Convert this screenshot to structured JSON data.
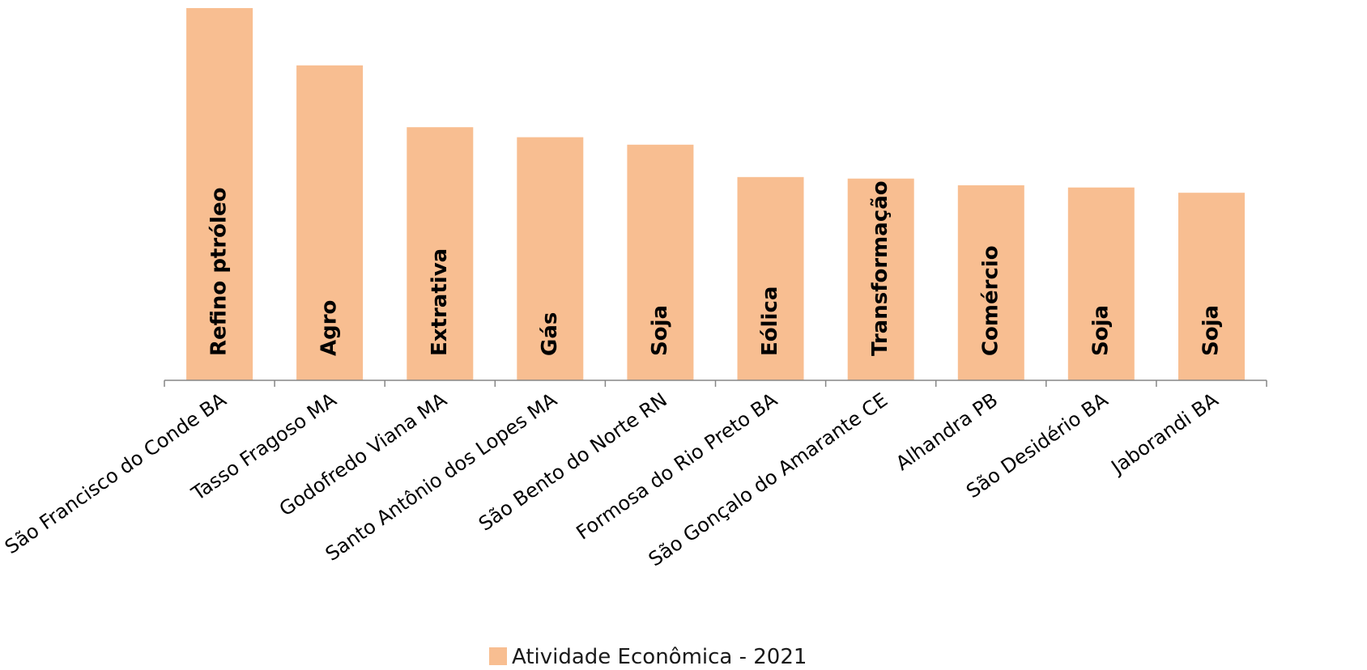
{
  "chart_data": {
    "type": "bar",
    "categories": [
      "São Francisco do Conde BA",
      "Tasso Fragoso MA",
      "Godofredo Viana MA",
      "Santo Antônio dos Lopes MA",
      "São Bento do Norte RN",
      "Formosa do Rio Preto BA",
      "São Gonçalo do Amarante CE",
      "Alhandra PB",
      "São Desidério BA",
      "Jaborandi BA"
    ],
    "series": [
      {
        "name": "Atividade Econômica - 2021",
        "values": [
          100,
          84.6,
          68.0,
          65.3,
          63.3,
          54.6,
          54.2,
          52.4,
          51.8,
          50.4
        ],
        "bar_labels": [
          "Refino  ptróleo",
          "Agro",
          "Extrativa",
          "Gás",
          "Soja",
          "Eólica",
          "Transformação",
          "Comércio",
          "Soja",
          "Soja"
        ]
      }
    ],
    "ylim": [
      0,
      100
    ],
    "grid": false,
    "legend_position": "bottom-center",
    "colors": {
      "bar": "#F8BE91",
      "axis": "#868686",
      "text": "#000000"
    }
  }
}
